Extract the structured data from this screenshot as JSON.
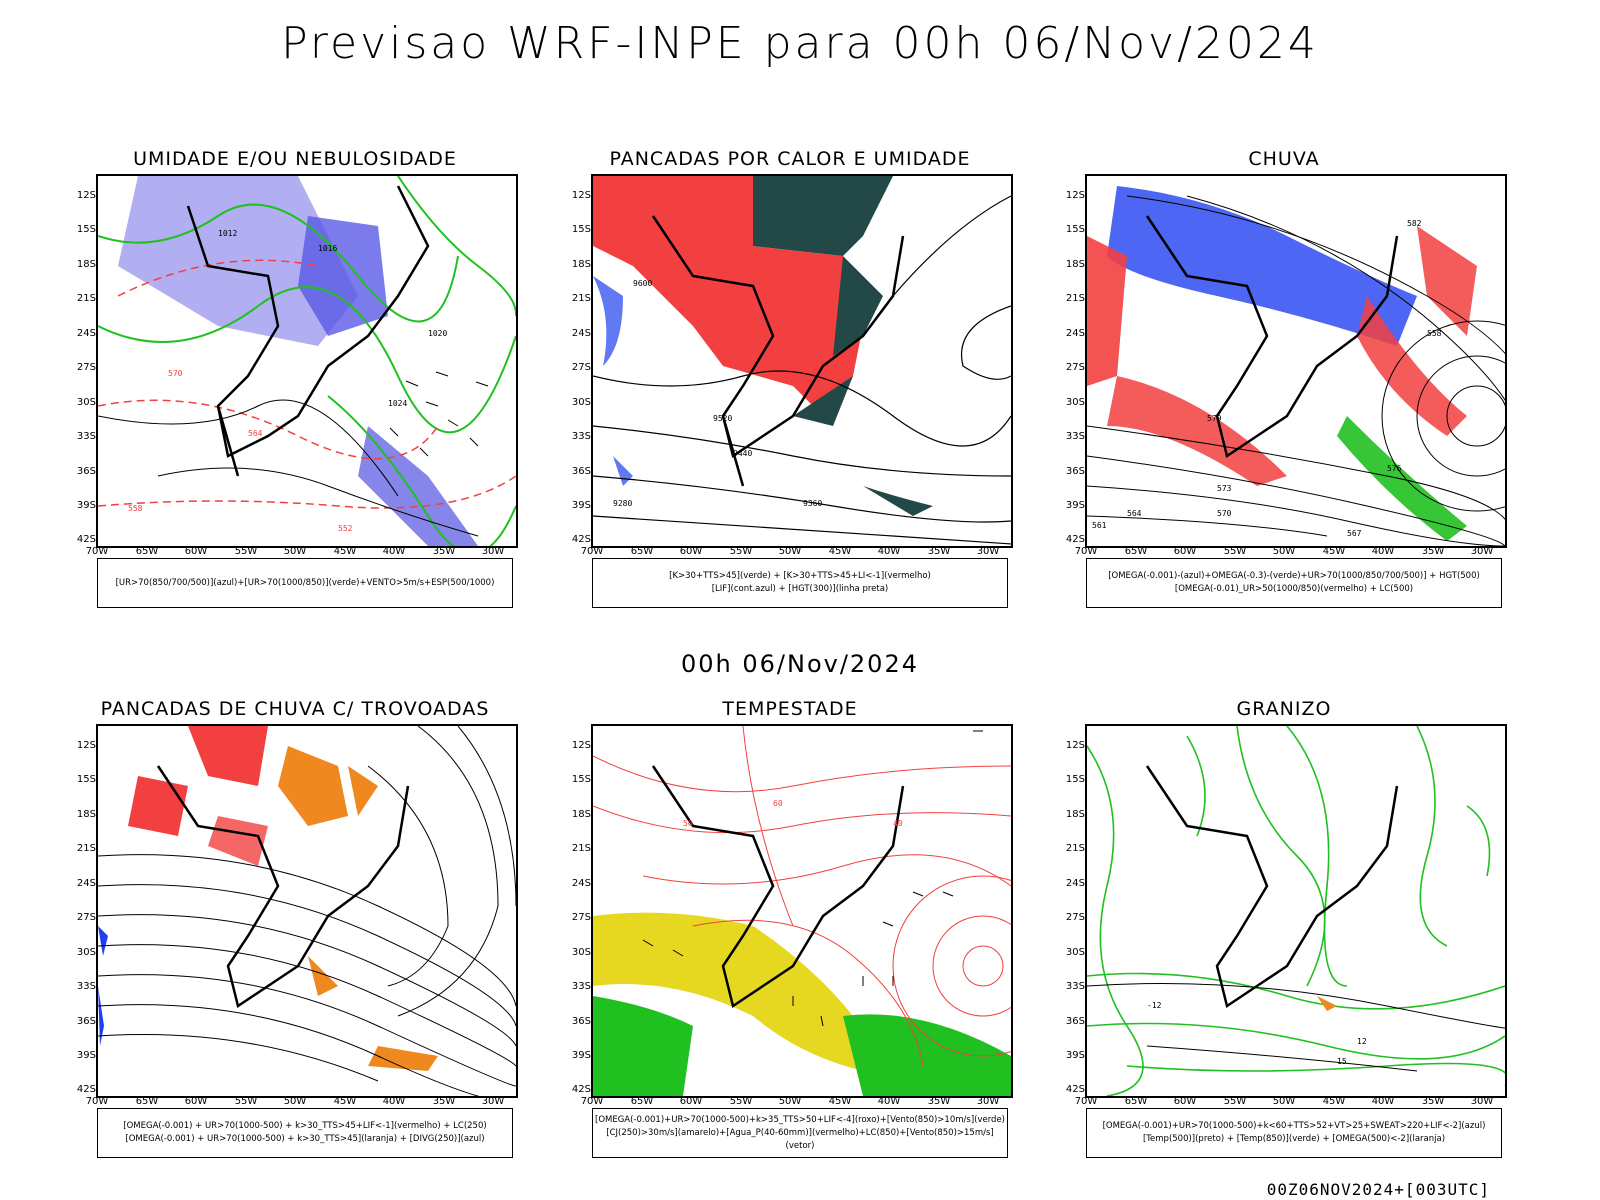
{
  "title": "Previsao WRF-INPE  para 00h 06/Nov/2024",
  "mid_title": "00h 06/Nov/2024",
  "footer": "00Z06NOV2024+[003UTC]",
  "axes": {
    "lat_labels": [
      "12S",
      "15S",
      "18S",
      "21S",
      "24S",
      "27S",
      "30S",
      "33S",
      "36S",
      "39S",
      "42S"
    ],
    "lon_labels": [
      "70W",
      "65W",
      "60W",
      "55W",
      "50W",
      "45W",
      "40W",
      "35W",
      "30W"
    ]
  },
  "colors": {
    "red": "#f24040",
    "blue": "#2040f0",
    "green": "#20c020",
    "orange": "#f08820",
    "lavender": "#a9a6f0",
    "darkteal": "#224848",
    "yellow": "#e6d820"
  },
  "panels": [
    {
      "title": "UMIDADE E/OU NEBULOSIDADE",
      "legend": [
        "[UR>70(850/700/500)](azul)+[UR>70(1000/850)](verde)+VENTO>5m/s+ESP(500/1000)"
      ],
      "contour_labels": [
        "1012",
        "1016",
        "1020",
        "570",
        "564",
        "558",
        "1024",
        "552"
      ]
    },
    {
      "title": "PANCADAS POR CALOR E UMIDADE",
      "legend": [
        "[K>30+TTS>45](verde) + [K>30+TTS>45+LI<-1](vermelho)",
        "[LIF](cont.azul) + [HGT(300)](linha preta)"
      ],
      "contour_labels": [
        "9600",
        "9520",
        "9440",
        "9360",
        "9280"
      ]
    },
    {
      "title": "CHUVA",
      "legend": [
        "[OMEGA(-0.001)-(azul)+OMEGA(-0.3)-(verde)+UR>70(1000/850/700/500)] + HGT(500)",
        "[OMEGA(-0.01)_UR>50(1000/850)(vermelho) + LC(500)"
      ],
      "contour_labels": [
        "582",
        "579",
        "576",
        "573",
        "570",
        "567",
        "564",
        "561",
        "558"
      ]
    },
    {
      "title": "PANCADAS DE CHUVA C/ TROVOADAS",
      "legend": [
        "[OMEGA(-0.001) + UR>70(1000-500) + k>30_TTS>45+LIF<-1](vermelho) + LC(250)",
        "[OMEGA(-0.001) + UR>70(1000-500) + k>30_TTS>45](laranja) + [DIVG(250)](azul)"
      ],
      "contour_labels": []
    },
    {
      "title": "TEMPESTADE",
      "legend": [
        "[OMEGA(-0.001)+UR>70(1000-500)+k>35_TTS>50+LIF<-4](roxo)+[Vento(850)>10m/s](verde)",
        "[CJ(250)>30m/s](amarelo)+[Agua_P(40-60mm)](vermelho)+LC(850)+[Vento(850)>15m/s](vetor)"
      ],
      "contour_labels": [
        "50",
        "40",
        "60"
      ]
    },
    {
      "title": "GRANIZO",
      "legend": [
        "[OMEGA(-0.001)+UR>70(1000-500)+k<60+TTS>52+VT>25+SWEAT>220+LIF<-2](azul)",
        "[Temp(500)](preto) + [Temp(850)](verde) + [OMEGA(500)<-2](laranja)"
      ],
      "contour_labels": [
        "-12",
        "12",
        "15"
      ]
    }
  ]
}
